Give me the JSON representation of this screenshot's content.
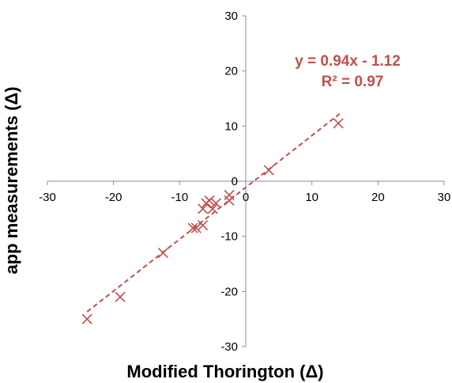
{
  "chart_data": {
    "type": "scatter",
    "xlabel": "Modified Thorington (Δ)",
    "ylabel": "app measurements (Δ)",
    "xlim": [
      -30,
      30
    ],
    "ylim": [
      -30,
      30
    ],
    "x_ticks": [
      -30,
      -20,
      -10,
      0,
      10,
      20,
      30
    ],
    "y_ticks": [
      30,
      20,
      10,
      0,
      -10,
      -20,
      -30
    ],
    "grid": false,
    "marker": "x",
    "series_color": "#c0504d",
    "points": [
      {
        "x": -24,
        "y": -25
      },
      {
        "x": -19,
        "y": -21
      },
      {
        "x": -12.5,
        "y": -13
      },
      {
        "x": -8,
        "y": -8.5
      },
      {
        "x": -7.5,
        "y": -8.5
      },
      {
        "x": -6.5,
        "y": -8
      },
      {
        "x": -6.5,
        "y": -5
      },
      {
        "x": -6,
        "y": -4
      },
      {
        "x": -5.5,
        "y": -3.5
      },
      {
        "x": -5,
        "y": -5
      },
      {
        "x": -4.5,
        "y": -4
      },
      {
        "x": -2.5,
        "y": -3.5
      },
      {
        "x": -2.5,
        "y": -2.5
      },
      {
        "x": 3.5,
        "y": 2
      },
      {
        "x": 14,
        "y": 10.5
      }
    ],
    "trendline": {
      "slope": 0.94,
      "intercept": -1.12,
      "x_range": [
        -24,
        14.5
      ],
      "style": "dashed",
      "equation_text": "y = 0.94x - 1.12",
      "r2_text": "R² = 0.97"
    }
  }
}
